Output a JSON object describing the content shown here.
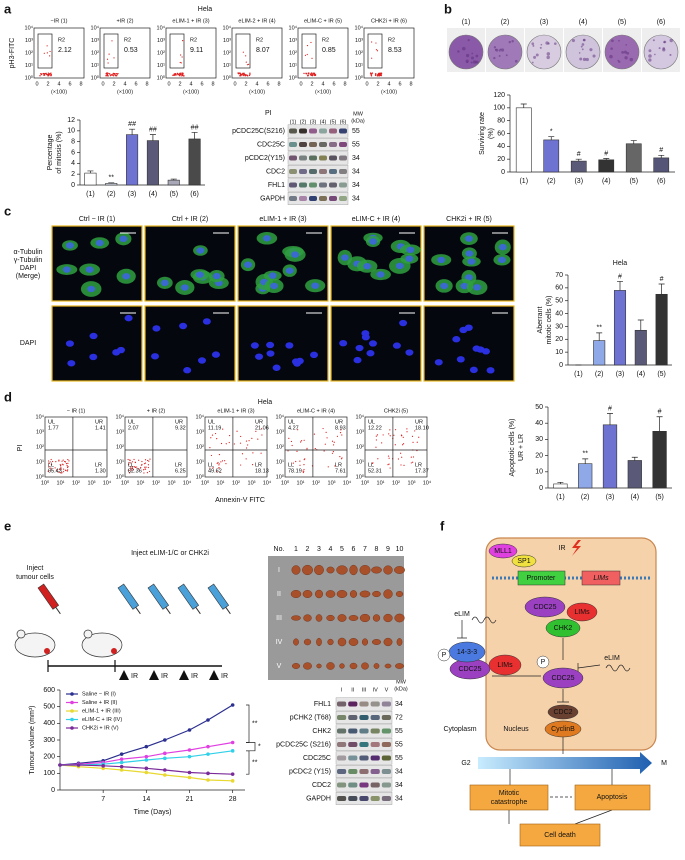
{
  "a": {
    "label": "a",
    "cell_line": "Hela",
    "y_label": "pH3-FITC",
    "gate": "R2",
    "x_unit": "(×100)",
    "log_ticks": [
      "10⁰",
      "10¹",
      "10²",
      "10³",
      "10⁴"
    ],
    "x_ticks": [
      0,
      2,
      4,
      6,
      8
    ],
    "plots": [
      {
        "title": "−IR (1)",
        "value": 2.12
      },
      {
        "title": "+IR (2)",
        "value": 0.53
      },
      {
        "title": "eLIM-1 + IR (3)",
        "value": 9.11
      },
      {
        "title": "eLIM-2 + IR (4)",
        "value": 8.07
      },
      {
        "title": "eLIM-C + IR (5)",
        "value": 0.85
      },
      {
        "title": "CHK2i + IR (6)",
        "value": 8.53
      }
    ],
    "blot": {
      "treatment": "PI",
      "lanes": [
        "(1)",
        "(2)",
        "(3)",
        "(4)",
        "(5)",
        "(6)"
      ],
      "mw_header": [
        "MW",
        "(kDa)"
      ],
      "rows": [
        {
          "name": "pCDC25C(S216)",
          "mw": 55
        },
        {
          "name": "CDC25C",
          "mw": 55
        },
        {
          "name": "pCDC2(Y15)",
          "mw": 34
        },
        {
          "name": "CDC2",
          "mw": 34
        },
        {
          "name": "FHL1",
          "mw": 34
        },
        {
          "name": "GAPDH",
          "mw": 34
        }
      ]
    }
  },
  "b": {
    "label": "b",
    "plates": [
      "(1)",
      "(2)",
      "(3)",
      "(4)",
      "(5)",
      "(6)"
    ]
  },
  "c": {
    "label": "c",
    "columns": [
      "Ctrl − IR (1)",
      "Ctrl + IR (2)",
      "eLIM-1 + IR (3)",
      "eLIM-C + IR (4)",
      "CHK2i + IR (5)"
    ],
    "row_labels": [
      [
        "α-Tubulin",
        "γ-Tubulin",
        "DAPI",
        "(Merge)"
      ],
      [
        "DAPI"
      ]
    ]
  },
  "d": {
    "label": "d",
    "cell_line": "Hela",
    "y_label": "PI",
    "x_label": "Annexin-V FITC",
    "log_ticks": [
      "10⁰",
      "10¹",
      "10²",
      "10³",
      "10⁴"
    ],
    "quadrants": [
      "UL",
      "UR",
      "LL",
      "LR"
    ],
    "plots": [
      {
        "title": "− IR (1)",
        "values": [
          "1.77",
          "1.41",
          "95.43",
          "1.30"
        ]
      },
      {
        "title": "+ IR (2)",
        "values": [
          "2.07",
          "9.32",
          "82.36",
          "6.25"
        ]
      },
      {
        "title": "eLIM-1 + IR (3)",
        "values": [
          "11.19",
          "21.06",
          "49.62",
          "18.13"
        ]
      },
      {
        "title": "eLIM-C + IR (4)",
        "values": [
          "4.27",
          "8.93",
          "78.19",
          "7.61"
        ]
      },
      {
        "title": "CHK2i (5)",
        "values": [
          "12.22",
          "18.10",
          "52.31",
          "17.37"
        ]
      }
    ]
  },
  "e": {
    "label": "e",
    "schematic": {
      "inject_cells": [
        "Inject",
        "tumour cells"
      ],
      "inject_drug": "Inject eLIM-1/C or CHK2i",
      "ir": "IR"
    },
    "photo": {
      "no": "No.",
      "numbers": [
        1,
        2,
        3,
        4,
        5,
        6,
        7,
        8,
        9,
        10
      ],
      "rows": [
        "I",
        "II",
        "III",
        "IV",
        "V"
      ]
    },
    "blot": {
      "lanes": [
        "I",
        "II",
        "III",
        "IV",
        "V"
      ],
      "mw_header": [
        "MW",
        "(kDa)"
      ],
      "rows": [
        {
          "name": "FHL1",
          "mw": 34
        },
        {
          "name": "pCHK2 (T68)",
          "mw": 72
        },
        {
          "name": "CHK2",
          "mw": 55
        },
        {
          "name": "pCDC25C (S216)",
          "mw": 55
        },
        {
          "name": "CDC25C",
          "mw": 55
        },
        {
          "name": "pCDC2 (Y15)",
          "mw": 34
        },
        {
          "name": "CDC2",
          "mw": 34
        },
        {
          "name": "GAPDH",
          "mw": 34
        }
      ]
    }
  },
  "f": {
    "label": "f",
    "ir": "IR",
    "mll1": "MLL1",
    "sp1": "SP1",
    "promoter": "Promoter",
    "lims": "LIMs",
    "cdc25": "CDC25",
    "chk2": "CHK2",
    "elim": "eLIM",
    "p": "P",
    "p1433": "14-3-3",
    "cdc2": "CDC2",
    "cyclinb": "CyclinB",
    "cytoplasm": "Cytoplasm",
    "nucleus": "Nucleus",
    "g2": "G2",
    "m": "M",
    "mitotic": [
      "Mitotic",
      "catastrophe"
    ],
    "apoptosis": "Apoptosis",
    "death": "Cell death"
  },
  "chart_data": [
    {
      "type": "bar",
      "y_label": [
        "Percentage",
        "of mitosis (%)"
      ],
      "categories": [
        "(1)",
        "(2)",
        "(3)",
        "(4)",
        "(5)",
        "(6)"
      ],
      "values": [
        2.2,
        0.3,
        9.3,
        8.2,
        0.9,
        8.5
      ],
      "errors": [
        0.4,
        0.1,
        1.0,
        1.1,
        0.2,
        1.2
      ],
      "annotations": [
        null,
        "**",
        "##",
        "##",
        null,
        "##"
      ],
      "colors": [
        "#ffffff",
        "#dfe6f5",
        "#6e72d0",
        "#5a5a78",
        "#a8a8b8",
        "#4a4a4a"
      ],
      "ylim": [
        0,
        12
      ],
      "yticks": [
        0,
        2,
        4,
        6,
        8,
        10,
        12
      ]
    },
    {
      "type": "bar",
      "y_label": [
        "Surviving rate",
        "(%)"
      ],
      "categories": [
        "(1)",
        "(2)",
        "(3)",
        "(4)",
        "(5)",
        "(6)"
      ],
      "values": [
        100,
        50,
        17,
        19,
        44,
        22
      ],
      "errors": [
        6,
        5,
        3,
        2,
        5,
        4
      ],
      "annotations": [
        null,
        "*",
        "#",
        "#",
        null,
        "#"
      ],
      "colors": [
        "#ffffff",
        "#6e72d0",
        "#5a5a78",
        "#333333",
        "#666666",
        "#555577"
      ],
      "ylim": [
        0,
        120
      ],
      "yticks": [
        0,
        20,
        40,
        60,
        80,
        100,
        120
      ]
    },
    {
      "type": "bar",
      "title": "Hela",
      "y_label": [
        "Aberrant",
        "mitotic cells (%)"
      ],
      "categories": [
        "(1)",
        "(2)",
        "(3)",
        "(4)",
        "(5)"
      ],
      "values": [
        0,
        19,
        58,
        27,
        55
      ],
      "errors": [
        0,
        6,
        7,
        8,
        8
      ],
      "annotations": [
        null,
        "**",
        "#",
        null,
        "#"
      ],
      "colors": [
        "#ffffff",
        "#8fa8e8",
        "#6e72d0",
        "#5a5a78",
        "#333333"
      ],
      "ylim": [
        0,
        70
      ],
      "yticks": [
        0,
        10,
        20,
        30,
        40,
        50,
        60,
        70
      ]
    },
    {
      "type": "bar",
      "y_label": [
        "Apoptotic cells (%)",
        "UR + LR"
      ],
      "categories": [
        "(1)",
        "(2)",
        "(3)",
        "(4)",
        "(5)"
      ],
      "values": [
        2.5,
        15,
        39,
        17,
        35
      ],
      "errors": [
        1,
        3,
        7,
        2,
        9
      ],
      "annotations": [
        null,
        "**",
        "#",
        null,
        "#"
      ],
      "colors": [
        "#ffffff",
        "#8fa8e8",
        "#6e72d0",
        "#5a5a78",
        "#333333"
      ],
      "ylim": [
        0,
        50
      ],
      "yticks": [
        0,
        10,
        20,
        30,
        40,
        50
      ]
    },
    {
      "type": "line",
      "y_label": [
        "Tumour volume (mm³)"
      ],
      "x_label": "Time (Days)",
      "legend": "upper left",
      "x": [
        0,
        3,
        7,
        10,
        14,
        17,
        21,
        24,
        28
      ],
      "xlim": [
        0,
        30
      ],
      "xticks": [
        7,
        14,
        21,
        28
      ],
      "ylim": [
        0,
        600
      ],
      "yticks": [
        0,
        100,
        200,
        300,
        400,
        500,
        600
      ],
      "annotations": [
        "**",
        "*",
        "**"
      ],
      "series": [
        {
          "name": "Saline − IR (I)",
          "color": "#2b2f8f",
          "values": [
            150,
            160,
            175,
            215,
            260,
            300,
            360,
            420,
            510
          ]
        },
        {
          "name": "Saline + IR (II)",
          "color": "#e040e0",
          "values": [
            150,
            155,
            165,
            185,
            200,
            220,
            240,
            260,
            285
          ]
        },
        {
          "name": "eLIM-1 + IR (III)",
          "color": "#e8d830",
          "values": [
            150,
            140,
            130,
            120,
            105,
            90,
            75,
            60,
            55
          ]
        },
        {
          "name": "eLIM-C + IR (IV)",
          "color": "#30d0e8",
          "values": [
            150,
            150,
            155,
            165,
            180,
            190,
            200,
            215,
            235
          ]
        },
        {
          "name": "CHK2i + IR (V)",
          "color": "#7a2a9a",
          "values": [
            150,
            150,
            145,
            140,
            130,
            120,
            105,
            100,
            95
          ]
        }
      ]
    }
  ]
}
